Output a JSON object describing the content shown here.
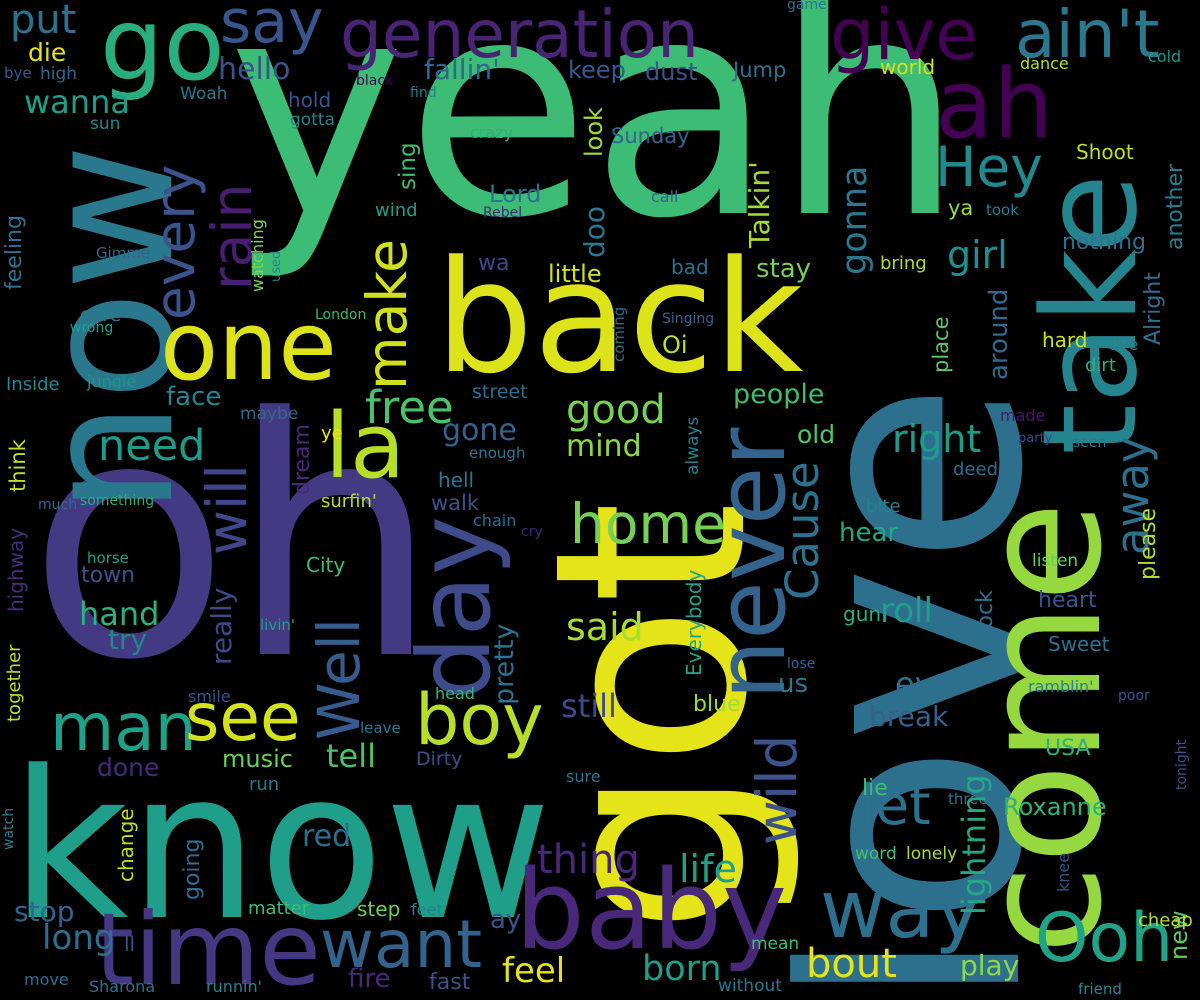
{
  "background": "#000000",
  "words": [
    {
      "text": "yeah",
      "color": "#3cbc75"
    },
    {
      "text": "oh",
      "color": "#443a83"
    },
    {
      "text": "love",
      "color": "#2d708e"
    },
    {
      "text": "got",
      "color": "#e5e419"
    },
    {
      "text": "know",
      "color": "#1f9e89"
    },
    {
      "text": "now",
      "color": "#2a788e"
    },
    {
      "text": "back",
      "color": "#dce319"
    },
    {
      "text": "come",
      "color": "#95d840"
    },
    {
      "text": "take",
      "color": "#25858e"
    },
    {
      "text": "baby",
      "color": "#482878"
    },
    {
      "text": "time",
      "color": "#453781"
    },
    {
      "text": "generation",
      "color": "#482475"
    },
    {
      "text": "go",
      "color": "#29af7f"
    },
    {
      "text": "one",
      "color": "#dce319"
    },
    {
      "text": "day",
      "color": "#3e4a89"
    },
    {
      "text": "never",
      "color": "#33638d"
    },
    {
      "text": "ah",
      "color": "#440154"
    },
    {
      "text": "la",
      "color": "#b8de29"
    },
    {
      "text": "way",
      "color": "#2d708e"
    },
    {
      "text": "Ooh",
      "color": "#20a386"
    },
    {
      "text": "give",
      "color": "#440154"
    },
    {
      "text": "ain't",
      "color": "#2a788e"
    },
    {
      "text": "say",
      "color": "#39568c"
    },
    {
      "text": "man",
      "color": "#1fa187"
    },
    {
      "text": "see",
      "color": "#d2e21b"
    },
    {
      "text": "boy",
      "color": "#b8de29"
    },
    {
      "text": "want",
      "color": "#33638d"
    },
    {
      "text": "home",
      "color": "#75d054"
    },
    {
      "text": "Hey",
      "color": "#23898e"
    },
    {
      "text": "every",
      "color": "#3b528b"
    },
    {
      "text": "rain",
      "color": "#481f70"
    },
    {
      "text": "make",
      "color": "#d0e11c"
    },
    {
      "text": "Well",
      "color": "#365c8d"
    },
    {
      "text": "will",
      "color": "#404688"
    },
    {
      "text": "Cause",
      "color": "#2c728e"
    },
    {
      "text": "wild",
      "color": "#3b528b"
    },
    {
      "text": "away",
      "color": "#2d708e"
    },
    {
      "text": "let",
      "color": "#2c728e"
    },
    {
      "text": "free",
      "color": "#4ac16d"
    },
    {
      "text": "need",
      "color": "#1e9b8a"
    },
    {
      "text": "good",
      "color": "#75d054"
    },
    {
      "text": "mind",
      "color": "#8fd744"
    },
    {
      "text": "right",
      "color": "#1e9c89"
    },
    {
      "text": "girl",
      "color": "#218f8d"
    },
    {
      "text": "gonna",
      "color": "#2a788e"
    },
    {
      "text": "put",
      "color": "#2c728e"
    },
    {
      "text": "hello",
      "color": "#3b528b"
    },
    {
      "text": "wanna",
      "color": "#1f9e89"
    },
    {
      "text": "fallin'",
      "color": "#31688e"
    },
    {
      "text": "keep",
      "color": "#38588c"
    },
    {
      "text": "dust",
      "color": "#3b528b"
    },
    {
      "text": "Jump",
      "color": "#2c728e"
    },
    {
      "text": "die",
      "color": "#e5e419"
    },
    {
      "text": "high",
      "color": "#31688e"
    },
    {
      "text": "bye",
      "color": "#365c8d"
    },
    {
      "text": "Woah",
      "color": "#29798e"
    },
    {
      "text": "hold",
      "color": "#3b528b"
    },
    {
      "text": "gotta",
      "color": "#25848e"
    },
    {
      "text": "black",
      "color": "#440154"
    },
    {
      "text": "find",
      "color": "#26818e"
    },
    {
      "text": "world",
      "color": "#d2e21b"
    },
    {
      "text": "dance",
      "color": "#b5de2b"
    },
    {
      "text": "cold",
      "color": "#1f948c"
    },
    {
      "text": "game",
      "color": "#2a788e"
    },
    {
      "text": "sun",
      "color": "#25858e"
    },
    {
      "text": "crazy",
      "color": "#2db27d"
    },
    {
      "text": "Sunday",
      "color": "#32648e"
    },
    {
      "text": "look",
      "color": "#a0da39"
    },
    {
      "text": "Shoot",
      "color": "#c0df25"
    },
    {
      "text": "Talkin'",
      "color": "#a2da37"
    },
    {
      "text": "Lord",
      "color": "#2b748e"
    },
    {
      "text": "call",
      "color": "#32658e"
    },
    {
      "text": "took",
      "color": "#27808e"
    },
    {
      "text": "ya",
      "color": "#9bd93c"
    },
    {
      "text": "sing",
      "color": "#3dbc74"
    },
    {
      "text": "wind",
      "color": "#1f9e89"
    },
    {
      "text": "Rebel",
      "color": "#482677"
    },
    {
      "text": "doo",
      "color": "#2a788e"
    },
    {
      "text": "Gimme",
      "color": "#32658e"
    },
    {
      "text": "feeling",
      "color": "#2d718e"
    },
    {
      "text": "watching",
      "color": "#81d34d"
    },
    {
      "text": "used",
      "color": "#26828e"
    },
    {
      "text": "wa",
      "color": "#3e4989"
    },
    {
      "text": "little",
      "color": "#d2e21b"
    },
    {
      "text": "bad",
      "color": "#2c728e"
    },
    {
      "text": "stay",
      "color": "#75d054"
    },
    {
      "text": "bring",
      "color": "#b0dd2f"
    },
    {
      "text": "nothing",
      "color": "#2d718e"
    },
    {
      "text": "Alright",
      "color": "#2e6f8e"
    },
    {
      "text": "another",
      "color": "#287c8e"
    },
    {
      "text": "care",
      "color": "#2a788e"
    },
    {
      "text": "wrong",
      "color": "#1fa088"
    },
    {
      "text": "London",
      "color": "#38b977"
    },
    {
      "text": "Singing",
      "color": "#33638d"
    },
    {
      "text": "coming",
      "color": "#31688e"
    },
    {
      "text": "Oi",
      "color": "#c2df23"
    },
    {
      "text": "hard",
      "color": "#cae11f"
    },
    {
      "text": "live",
      "color": "#277f8e"
    },
    {
      "text": "dirt",
      "color": "#2ab07f"
    },
    {
      "text": "place",
      "color": "#5ec962"
    },
    {
      "text": "around",
      "color": "#31688e"
    },
    {
      "text": "Inside",
      "color": "#24868e"
    },
    {
      "text": "jungle",
      "color": "#1f948c"
    },
    {
      "text": "face",
      "color": "#25858e"
    },
    {
      "text": "street",
      "color": "#2e6e8e"
    },
    {
      "text": "people",
      "color": "#40bd72"
    },
    {
      "text": "maybe",
      "color": "#31688e"
    },
    {
      "text": "dream",
      "color": "#482878"
    },
    {
      "text": "ye",
      "color": "#f1e51d"
    },
    {
      "text": "gone",
      "color": "#33638d"
    },
    {
      "text": "enough",
      "color": "#2a788e"
    },
    {
      "text": "always",
      "color": "#26828e"
    },
    {
      "text": "old",
      "color": "#4fc46a"
    },
    {
      "text": "made",
      "color": "#481769"
    },
    {
      "text": "party",
      "color": "#404688"
    },
    {
      "text": "seen",
      "color": "#2a788e"
    },
    {
      "text": "deeds",
      "color": "#2e6e8e"
    },
    {
      "text": "think",
      "color": "#c2df23"
    },
    {
      "text": "much",
      "color": "#31688e"
    },
    {
      "text": "something",
      "color": "#2ab07f"
    },
    {
      "text": "surfin'",
      "color": "#b2dd2d"
    },
    {
      "text": "walk",
      "color": "#3b528b"
    },
    {
      "text": "hell",
      "color": "#2a788e"
    },
    {
      "text": "chain",
      "color": "#2e6e8e"
    },
    {
      "text": "cry",
      "color": "#482878"
    },
    {
      "text": "bite",
      "color": "#26828e"
    },
    {
      "text": "hear",
      "color": "#22a884"
    },
    {
      "text": "please",
      "color": "#b0dd2f"
    },
    {
      "text": "highway",
      "color": "#472c7a"
    },
    {
      "text": "horse",
      "color": "#1f9e89"
    },
    {
      "text": "City",
      "color": "#3dbc74"
    },
    {
      "text": "town",
      "color": "#3b528b"
    },
    {
      "text": "hand",
      "color": "#2db27d"
    },
    {
      "text": "try",
      "color": "#25858e"
    },
    {
      "text": "really",
      "color": "#3e4989"
    },
    {
      "text": "pretty",
      "color": "#2c728e"
    },
    {
      "text": "said",
      "color": "#a8db34"
    },
    {
      "text": "Everybody",
      "color": "#20a386"
    },
    {
      "text": "listen",
      "color": "#6ccd5a"
    },
    {
      "text": "heart",
      "color": "#39568c"
    },
    {
      "text": "gun",
      "color": "#28ae80"
    },
    {
      "text": "roll",
      "color": "#1f9e89"
    },
    {
      "text": "rock",
      "color": "#2d708e"
    },
    {
      "text": "Sweet",
      "color": "#2b748e"
    },
    {
      "text": "together",
      "color": "#bddf26"
    },
    {
      "text": "livin'",
      "color": "#1fa088"
    },
    {
      "text": "smile",
      "color": "#3b528b"
    },
    {
      "text": "head",
      "color": "#35b779"
    },
    {
      "text": "still",
      "color": "#3e4a89"
    },
    {
      "text": "us",
      "color": "#2a788e"
    },
    {
      "text": "eye",
      "color": "#2e6e8e"
    },
    {
      "text": "lose",
      "color": "#32648e"
    },
    {
      "text": "ramblin'",
      "color": "#26828e"
    },
    {
      "text": "poor",
      "color": "#3b528b"
    },
    {
      "text": "tonight",
      "color": "#3b528b"
    },
    {
      "text": "blue",
      "color": "#9fda3a"
    },
    {
      "text": "break",
      "color": "#33638d"
    },
    {
      "text": "leave",
      "color": "#2a788e"
    },
    {
      "text": "music",
      "color": "#6ccd5a"
    },
    {
      "text": "tell",
      "color": "#4ac16d"
    },
    {
      "text": "Dirty",
      "color": "#3b528b"
    },
    {
      "text": "done",
      "color": "#482878"
    },
    {
      "text": "USA",
      "color": "#2db27d"
    },
    {
      "text": "run",
      "color": "#2a788e"
    },
    {
      "text": "sure",
      "color": "#2c728e"
    },
    {
      "text": "lie",
      "color": "#3dbc74"
    },
    {
      "text": "three",
      "color": "#2a788e"
    },
    {
      "text": "lightning",
      "color": "#22a884"
    },
    {
      "text": "Roxanne",
      "color": "#2db27d"
    },
    {
      "text": "watch",
      "color": "#26828e"
    },
    {
      "text": "change",
      "color": "#bddf26"
    },
    {
      "text": "red",
      "color": "#2e6e8e"
    },
    {
      "text": "going",
      "color": "#2e6e8e"
    },
    {
      "text": "thing",
      "color": "#482878"
    },
    {
      "text": "life",
      "color": "#1fa088"
    },
    {
      "text": "word",
      "color": "#44bf70"
    },
    {
      "text": "lonely",
      "color": "#a8db34"
    },
    {
      "text": "knee",
      "color": "#3b528b"
    },
    {
      "text": "new",
      "color": "#5ec962"
    },
    {
      "text": "cheap",
      "color": "#b2dd2d"
    },
    {
      "text": "stop",
      "color": "#32648e"
    },
    {
      "text": "matter",
      "color": "#3dbc74"
    },
    {
      "text": "step",
      "color": "#6ccd5a"
    },
    {
      "text": "feet",
      "color": "#25858e"
    },
    {
      "text": "long",
      "color": "#2e6e8e"
    },
    {
      "text": "ll",
      "color": "#3b528b"
    },
    {
      "text": "ay",
      "color": "#3b528b"
    },
    {
      "text": "feel",
      "color": "#e5e419"
    },
    {
      "text": "born",
      "color": "#1f9e89"
    },
    {
      "text": "bout",
      "color": "#e5e419"
    },
    {
      "text": "mean",
      "color": "#3dbc74"
    },
    {
      "text": "play",
      "color": "#8fd744"
    },
    {
      "text": "fire",
      "color": "#482878"
    },
    {
      "text": "fast",
      "color": "#3b528b"
    },
    {
      "text": "move",
      "color": "#2e6e8e"
    },
    {
      "text": "Sharona",
      "color": "#2c728e"
    },
    {
      "text": "runnin'",
      "color": "#26828e"
    },
    {
      "text": "without",
      "color": "#2a788e"
    },
    {
      "text": "friend",
      "color": "#25858e"
    }
  ]
}
